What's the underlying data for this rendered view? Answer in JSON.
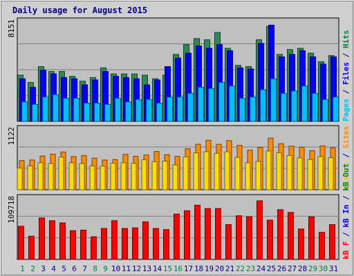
{
  "chart_data": [
    {
      "type": "bar",
      "title": "Daily usage for August 2015",
      "panel": "top",
      "ylabel_parts": [
        {
          "text": "Pages",
          "color": "#00c0ff"
        },
        {
          "text": " / ",
          "color": "#00008b"
        },
        {
          "text": "Files",
          "color": "#0000ff"
        },
        {
          "text": " / ",
          "color": "#00008b"
        },
        {
          "text": "Hits",
          "color": "#008040"
        }
      ],
      "max_label": "8151",
      "categories": [
        "1",
        "2",
        "3",
        "4",
        "5",
        "6",
        "7",
        "8",
        "9",
        "10",
        "11",
        "12",
        "13",
        "14",
        "15",
        "16",
        "17",
        "18",
        "19",
        "20",
        "21",
        "22",
        "23",
        "24",
        "25",
        "26",
        "27",
        "28",
        "29",
        "30",
        "31"
      ],
      "weekend_days": [
        "1",
        "2",
        "8",
        "9",
        "15",
        "16",
        "22",
        "23",
        "29",
        "30"
      ],
      "ylim": [
        0,
        8151
      ],
      "grid": true,
      "series": [
        {
          "name": "Hits",
          "color": "#2e8b57",
          "values": [
            3800,
            3200,
            4500,
            4100,
            4100,
            3700,
            3300,
            3600,
            4400,
            3900,
            3900,
            3900,
            3800,
            3500,
            3800,
            5500,
            6300,
            6800,
            6700,
            7300,
            6000,
            4600,
            4500,
            6700,
            7800,
            5500,
            5900,
            6000,
            5600,
            4900,
            5400
          ]
        },
        {
          "name": "Files",
          "color": "#0000ff",
          "values": [
            3500,
            2800,
            4200,
            3900,
            3600,
            3500,
            3000,
            3400,
            4100,
            3700,
            3600,
            3500,
            3000,
            3400,
            4500,
            5200,
            5600,
            6200,
            6000,
            6300,
            5800,
            4400,
            4300,
            6400,
            7900,
            5300,
            5500,
            5800,
            5300,
            4700,
            5300
          ]
        },
        {
          "name": "Pages",
          "color": "#00bfff",
          "values": [
            1600,
            1400,
            2000,
            2200,
            1900,
            1900,
            1500,
            1500,
            1400,
            1900,
            1600,
            1800,
            1800,
            1500,
            2000,
            2000,
            2300,
            2800,
            2700,
            3200,
            2900,
            1900,
            2000,
            2600,
            3500,
            2300,
            2500,
            2900,
            2300,
            1800,
            2000
          ]
        }
      ]
    },
    {
      "type": "bar",
      "panel": "middle",
      "ylabel_parts": [
        {
          "text": "Visits",
          "color": "#e8c800"
        },
        {
          "text": " / ",
          "color": "#00008b"
        },
        {
          "text": "Sites",
          "color": "#ff8c00"
        }
      ],
      "max_label": "1122",
      "categories": [
        "1",
        "2",
        "3",
        "4",
        "5",
        "6",
        "7",
        "8",
        "9",
        "10",
        "11",
        "12",
        "13",
        "14",
        "15",
        "16",
        "17",
        "18",
        "19",
        "20",
        "21",
        "22",
        "23",
        "24",
        "25",
        "26",
        "27",
        "28",
        "29",
        "30",
        "31"
      ],
      "ylim": [
        0,
        1122
      ],
      "grid": true,
      "series": [
        {
          "name": "Sites",
          "color": "#ff8c00",
          "values": [
            545,
            555,
            630,
            665,
            705,
            620,
            640,
            590,
            555,
            565,
            660,
            625,
            650,
            715,
            655,
            625,
            765,
            850,
            925,
            850,
            920,
            830,
            740,
            790,
            965,
            860,
            815,
            795,
            730,
            820,
            785
          ]
        },
        {
          "name": "Visits",
          "color": "#ffdd00",
          "values": [
            405,
            445,
            505,
            490,
            610,
            505,
            490,
            445,
            440,
            495,
            505,
            495,
            560,
            525,
            535,
            465,
            615,
            690,
            710,
            680,
            710,
            605,
            505,
            530,
            725,
            690,
            640,
            595,
            565,
            620,
            600
          ]
        }
      ]
    },
    {
      "type": "bar",
      "panel": "bottom",
      "ylabel_parts": [
        {
          "text": "kB F",
          "color": "#ff0000"
        },
        {
          "text": " / ",
          "color": "#00008b"
        },
        {
          "text": "kB In",
          "color": "#0000ff"
        },
        {
          "text": " / ",
          "color": "#00008b"
        },
        {
          "text": "kB Out",
          "color": "#008040"
        }
      ],
      "max_label": "109718",
      "categories": [
        "1",
        "2",
        "3",
        "4",
        "5",
        "6",
        "7",
        "8",
        "9",
        "10",
        "11",
        "12",
        "13",
        "14",
        "15",
        "16",
        "17",
        "18",
        "19",
        "20",
        "21",
        "22",
        "23",
        "24",
        "25",
        "26",
        "27",
        "28",
        "29",
        "30",
        "31"
      ],
      "ylim": [
        0,
        109718
      ],
      "grid": true,
      "series": [
        {
          "name": "kB F",
          "color": "#ff0000",
          "values": [
            60000,
            42000,
            75000,
            70000,
            66000,
            52000,
            53000,
            41000,
            56000,
            70000,
            56000,
            57000,
            68000,
            56000,
            54000,
            82000,
            88000,
            98000,
            92000,
            92000,
            63000,
            79000,
            77000,
            106000,
            71000,
            90000,
            85000,
            55000,
            77000,
            49000,
            63000
          ]
        }
      ]
    }
  ]
}
